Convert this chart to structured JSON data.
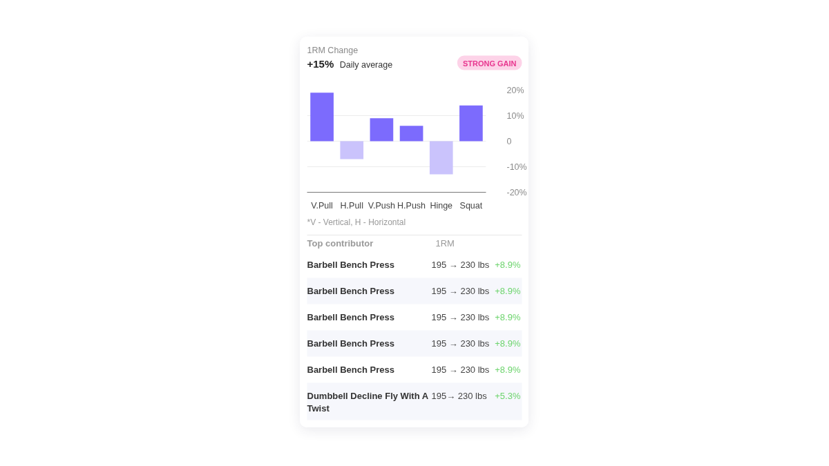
{
  "chart_data": [
    {
      "type": "bar",
      "title": "1RM Change",
      "annotations": [
        "+15%",
        "Daily average",
        "STRONG GAIN",
        "*V - Vertical, H - Horizontal"
      ],
      "categories": [
        "V.Pull",
        "H.Pull",
        "V.Push",
        "H.Push",
        "Hinge",
        "Squat"
      ],
      "values": [
        19,
        -7,
        9,
        6,
        -13,
        14
      ],
      "colors": [
        "#7c6bfd",
        "#cac3fc",
        "#7c6bfd",
        "#7c6bfd",
        "#cac3fc",
        "#7c6bfd"
      ],
      "ylim": [
        -20,
        20
      ],
      "yticks": [
        {
          "value": 20,
          "label": "20%"
        },
        {
          "value": 10,
          "label": "10%"
        },
        0,
        {
          "value": -10,
          "label": "-10%"
        },
        {
          "value": -20,
          "label": "-20%"
        }
      ],
      "grid": "y"
    },
    {
      "type": "other",
      "categories": [
        "Barbell Bench Press",
        "Barbell Bench Press",
        "Barbell Bench Press",
        "Barbell Bench Press",
        "Barbell Bench Press",
        "Dumbbell Decline Fly With A Twist"
      ],
      "annotations": [
        "Top contributor",
        "1RM",
        "195 → 230 lbs",
        "195 → 230 lbs",
        "195 → 230 lbs",
        "195 → 230 lbs",
        "195 → 230 lbs",
        "195→ 230 lbs",
        "+8.9%",
        "+8.9%",
        "+8.9%",
        "+8.9%",
        "+8.9%",
        "+5.3%"
      ]
    }
  ]
}
